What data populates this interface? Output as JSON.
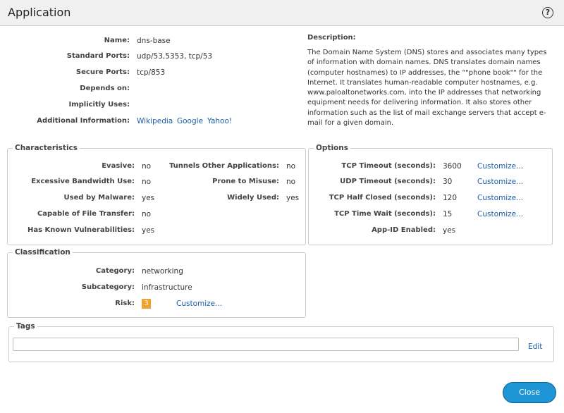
{
  "header": {
    "title": "Application",
    "help": "?"
  },
  "general": {
    "fields": [
      {
        "label": "Name:",
        "value": "dns-base"
      },
      {
        "label": "Standard Ports:",
        "value": "udp/53,5353, tcp/53"
      },
      {
        "label": "Secure Ports:",
        "value": "tcp/853"
      },
      {
        "label": "Depends on:"
      },
      {
        "label": "Implicitly Uses:"
      },
      {
        "label": "Additional Information:",
        "links": [
          "Wikipedia",
          "Google",
          "Yahoo!"
        ]
      }
    ]
  },
  "description": {
    "label": "Description:",
    "text": "The Domain Name System (DNS) stores and associates many types of information with domain names. DNS translates domain names (computer hostnames) to IP addresses, the \"\"phone book\"\" for the Internet. It translates human-readable computer hostnames, e.g. www.paloaltonetworks.com, into the IP addresses that networking equipment needs for delivering information. It also stores other information such as the list of mail exchange servers that accept e-mail for a given domain."
  },
  "characteristics": {
    "title": "Characteristics",
    "left": [
      {
        "label": "Evasive:",
        "value": "no"
      },
      {
        "label": "Excessive Bandwidth Use:",
        "value": "no"
      },
      {
        "label": "Used by Malware:",
        "value": "yes"
      },
      {
        "label": "Capable of File Transfer:",
        "value": "no"
      },
      {
        "label": "Has Known Vulnerabilities:",
        "value": "yes"
      }
    ],
    "right": [
      {
        "label": "Tunnels Other Applications:",
        "value": "no"
      },
      {
        "label": "Prone to Misuse:",
        "value": "no"
      },
      {
        "label": "Widely Used:",
        "value": "yes"
      }
    ]
  },
  "options": {
    "title": "Options",
    "rows": [
      {
        "label": "TCP Timeout (seconds):",
        "value": "3600",
        "action": "Customize..."
      },
      {
        "label": "UDP Timeout (seconds):",
        "value": "30",
        "action": "Customize..."
      },
      {
        "label": "TCP Half Closed (seconds):",
        "value": "120",
        "action": "Customize..."
      },
      {
        "label": "TCP Time Wait (seconds):",
        "value": "15",
        "action": "Customize..."
      },
      {
        "label": "App-ID Enabled:",
        "value": "yes"
      }
    ]
  },
  "classification": {
    "title": "Classification",
    "rows": [
      {
        "label": "Category:",
        "value": "networking"
      },
      {
        "label": "Subcategory:",
        "value": "infrastructure"
      },
      {
        "label": "Risk:",
        "value": "3",
        "action": "Customize..."
      }
    ]
  },
  "tags": {
    "title": "Tags",
    "action": "Edit"
  },
  "footer": {
    "close": "Close"
  }
}
